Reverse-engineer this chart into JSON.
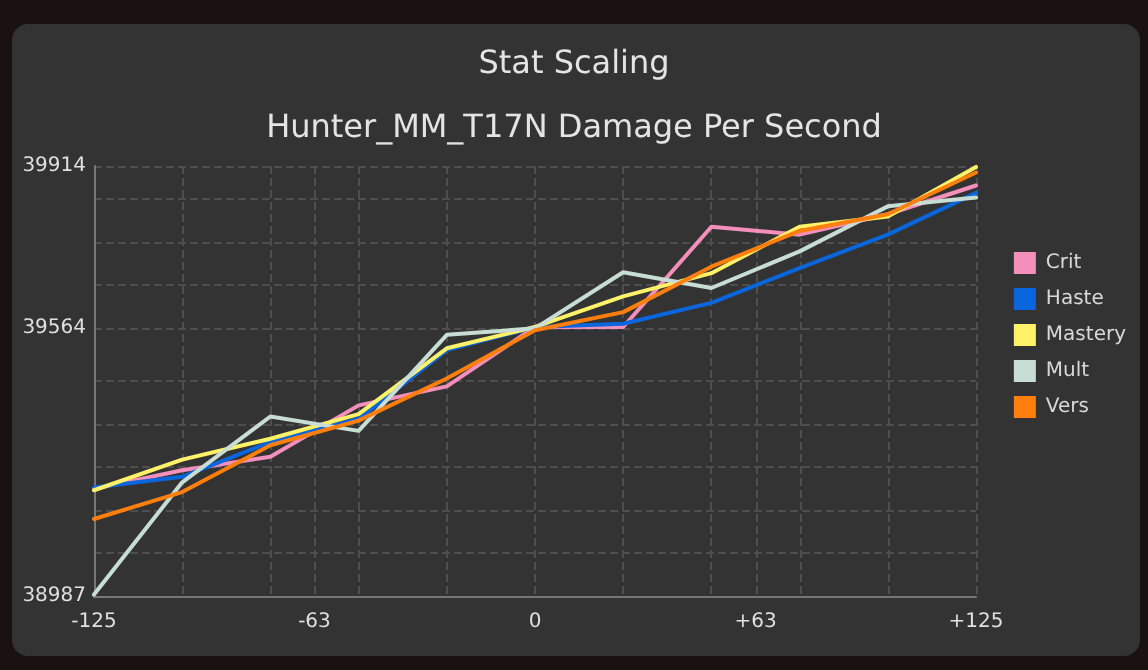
{
  "chart_data": {
    "type": "line",
    "title": "Stat Scaling",
    "subtitle": "Hunter_MM_T17N Damage Per Second",
    "x": [
      -125,
      -100,
      -75,
      -50,
      -25,
      0,
      25,
      50,
      75,
      100,
      125
    ],
    "series": [
      {
        "name": "Crit",
        "color": "#f48fbc",
        "values": [
          39218,
          39258,
          39287,
          39398,
          39439,
          39567,
          39567,
          39783,
          39766,
          39810,
          39872
        ]
      },
      {
        "name": "Haste",
        "color": "#0a66dc",
        "values": [
          39221,
          39244,
          39319,
          39369,
          39517,
          39567,
          39574,
          39619,
          39694,
          39766,
          39856
        ]
      },
      {
        "name": "Mastery",
        "color": "#fff168",
        "values": [
          39215,
          39281,
          39326,
          39379,
          39521,
          39567,
          39633,
          39683,
          39783,
          39805,
          39912
        ]
      },
      {
        "name": "Mult",
        "color": "#c8ddd4",
        "values": [
          38990,
          39232,
          39374,
          39343,
          39550,
          39564,
          39685,
          39651,
          39730,
          39827,
          39846
        ]
      },
      {
        "name": "Vers",
        "color": "#ff7f0e",
        "values": [
          39153,
          39211,
          39312,
          39365,
          39456,
          39560,
          39599,
          39697,
          39774,
          39810,
          39900
        ]
      }
    ],
    "xlim": [
      -125,
      125
    ],
    "xticks": [
      -125,
      {
        "value": -100,
        "label": null
      },
      {
        "value": -75,
        "label": null
      },
      {
        "value": -62.5,
        "label": "-63"
      },
      {
        "value": -50,
        "label": null
      },
      {
        "value": -25,
        "label": null
      },
      0,
      {
        "value": 25,
        "label": null
      },
      {
        "value": 50,
        "label": null
      },
      {
        "value": 62.5,
        "label": "+63"
      },
      {
        "value": 75,
        "label": null
      },
      {
        "value": 100,
        "label": null
      },
      {
        "value": 125,
        "label": "+125"
      }
    ],
    "ylim": [
      38987,
      39914
    ],
    "yticks": [
      38987,
      {
        "value": 39080,
        "label": null
      },
      {
        "value": 39172,
        "label": null
      },
      {
        "value": 39265,
        "label": null
      },
      {
        "value": 39358,
        "label": null
      },
      {
        "value": 39450,
        "label": null
      },
      39564,
      {
        "value": 39657,
        "label": null
      },
      {
        "value": 39750,
        "label": null
      },
      {
        "value": 39843,
        "label": null
      },
      39914
    ],
    "grid": true,
    "legend": "right",
    "marker": "none",
    "line_style": "solid"
  }
}
